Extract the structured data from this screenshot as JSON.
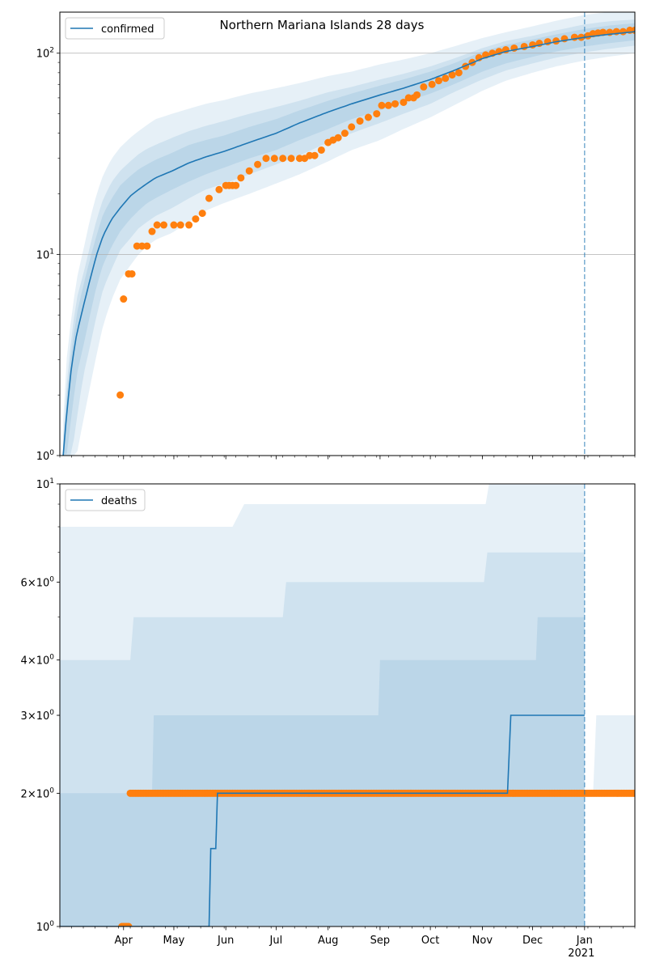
{
  "chart_data": [
    {
      "type": "line",
      "title": "Northern Mariana Islands 28 days",
      "yscale": "log",
      "ylim": [
        1,
        160
      ],
      "xlim": [
        "2020-02-23",
        "2021-01-31"
      ],
      "ytick_labels": [
        {
          "value": 1,
          "base": "10",
          "exp": "0"
        },
        {
          "value": 10,
          "base": "10",
          "exp": "1"
        },
        {
          "value": 100,
          "base": "10",
          "exp": "2"
        }
      ],
      "grid_y": [
        10,
        100
      ],
      "legend": {
        "position": "top-left",
        "entries": [
          "confirmed"
        ]
      },
      "forecast_start": "2021-01-01",
      "colors": {
        "line": "#1f77b4",
        "points": "#ff7f0e",
        "band": "#1f77b4",
        "vline": "#1f77b4"
      },
      "series": [
        {
          "name": "confirmed",
          "kind": "line",
          "x": [
            "2020-02-25",
            "2020-02-27",
            "2020-03-01",
            "2020-03-04",
            "2020-03-08",
            "2020-03-12",
            "2020-03-16",
            "2020-03-20",
            "2020-03-25",
            "2020-03-30",
            "2020-04-05",
            "2020-04-10",
            "2020-04-15",
            "2020-04-20",
            "2020-04-30",
            "2020-05-10",
            "2020-05-20",
            "2020-05-31",
            "2020-06-15",
            "2020-07-01",
            "2020-07-15",
            "2020-08-01",
            "2020-08-15",
            "2020-09-01",
            "2020-09-15",
            "2020-10-01",
            "2020-10-15",
            "2020-11-01",
            "2020-11-15",
            "2020-12-01",
            "2020-12-15",
            "2021-01-01",
            "2021-01-15",
            "2021-01-31"
          ],
          "values": [
            1,
            1.6,
            2.8,
            4,
            5.5,
            7.5,
            10,
            12.5,
            15,
            17,
            19.5,
            21,
            22.5,
            24,
            26,
            28.5,
            30.5,
            32.5,
            36,
            40,
            45,
            51,
            56,
            62,
            67,
            74,
            82,
            94,
            102,
            108,
            114,
            120,
            124,
            128
          ]
        },
        {
          "name": "",
          "kind": "points",
          "x": [
            "2020-03-30",
            "2020-04-01",
            "2020-04-04",
            "2020-04-06",
            "2020-04-09",
            "2020-04-12",
            "2020-04-15",
            "2020-04-18",
            "2020-04-21",
            "2020-04-25",
            "2020-05-01",
            "2020-05-05",
            "2020-05-10",
            "2020-05-14",
            "2020-05-18",
            "2020-05-22",
            "2020-05-28",
            "2020-06-01",
            "2020-06-03",
            "2020-06-05",
            "2020-06-07",
            "2020-06-10",
            "2020-06-15",
            "2020-06-20",
            "2020-06-25",
            "2020-06-30",
            "2020-07-05",
            "2020-07-10",
            "2020-07-15",
            "2020-07-18",
            "2020-07-21",
            "2020-07-24",
            "2020-07-28",
            "2020-08-01",
            "2020-08-04",
            "2020-08-07",
            "2020-08-11",
            "2020-08-15",
            "2020-08-20",
            "2020-08-25",
            "2020-08-30",
            "2020-09-02",
            "2020-09-06",
            "2020-09-10",
            "2020-09-15",
            "2020-09-18",
            "2020-09-21",
            "2020-09-23",
            "2020-09-27",
            "2020-10-02",
            "2020-10-06",
            "2020-10-10",
            "2020-10-14",
            "2020-10-18",
            "2020-10-22",
            "2020-10-26",
            "2020-10-30",
            "2020-11-03",
            "2020-11-07",
            "2020-11-11",
            "2020-11-15",
            "2020-11-20",
            "2020-11-26",
            "2020-12-01",
            "2020-12-05",
            "2020-12-10",
            "2020-12-15",
            "2020-12-20",
            "2020-12-26",
            "2020-12-30",
            "2021-01-03",
            "2021-01-06",
            "2021-01-09",
            "2021-01-12",
            "2021-01-16",
            "2021-01-20",
            "2021-01-24",
            "2021-01-28",
            "2021-01-31"
          ],
          "values": [
            2,
            6,
            8,
            8,
            11,
            11,
            11,
            13,
            14,
            14,
            14,
            14,
            14,
            15,
            16,
            19,
            21,
            22,
            22,
            22,
            22,
            24,
            26,
            28,
            30,
            30,
            30,
            30,
            30,
            30,
            31,
            31,
            33,
            36,
            37,
            38,
            40,
            43,
            46,
            48,
            50,
            55,
            55,
            56,
            57,
            60,
            60,
            62,
            68,
            70,
            73,
            75,
            78,
            80,
            86,
            90,
            95,
            98,
            100,
            102,
            104,
            106,
            108,
            110,
            112,
            114,
            115,
            118,
            120,
            120,
            122,
            125,
            126,
            127,
            127,
            128,
            128,
            130,
            130
          ]
        }
      ],
      "bands": [
        {
          "lower": [
            1,
            1,
            1,
            1,
            1.5,
            2.2,
            3.2,
            4.5,
            6,
            7.5,
            8.8,
            10,
            11,
            11.8,
            12.8,
            14.5,
            16.5,
            18,
            20,
            22.5,
            25,
            29,
            33,
            37,
            42,
            48,
            55,
            65,
            73,
            80,
            86,
            92,
            96,
            100
          ],
          "upper": [
            1.5,
            3,
            5,
            7.5,
            10.5,
            15,
            20,
            25,
            30,
            34,
            38,
            41,
            44,
            47,
            50,
            53,
            56,
            58.5,
            63,
            67,
            71,
            77,
            81,
            88,
            93,
            100,
            108,
            119,
            127,
            136,
            145,
            155,
            160,
            160
          ]
        },
        {
          "lower": [
            1,
            1,
            1,
            1.5,
            2.5,
            3.5,
            5,
            6.8,
            8.5,
            10.5,
            12,
            13.5,
            14.5,
            15.5,
            17,
            19,
            21,
            22.5,
            25,
            28,
            31,
            36,
            40,
            45,
            50,
            56,
            64,
            74,
            82,
            89,
            95,
            101,
            105,
            109
          ],
          "upper": [
            1.2,
            2.2,
            4,
            6,
            8,
            11,
            15,
            19,
            23,
            26,
            29,
            31.5,
            33.5,
            35,
            38,
            41,
            43.5,
            46,
            50,
            54,
            58,
            64,
            68,
            74,
            79,
            86,
            94,
            106,
            115,
            122,
            130,
            139,
            144,
            147
          ]
        },
        {
          "lower": [
            1,
            1,
            1.6,
            2.5,
            3.5,
            5,
            7,
            9,
            11,
            13,
            15,
            16.5,
            18,
            19,
            21,
            23,
            25,
            27,
            30,
            33,
            37,
            42,
            47,
            52,
            57,
            63,
            70,
            81,
            89,
            96,
            102,
            108,
            112,
            116
          ],
          "upper": [
            1.1,
            1.9,
            3.4,
            5,
            7,
            9.5,
            12.5,
            16,
            19,
            22,
            24.5,
            26.5,
            28,
            29.5,
            32,
            35,
            37,
            39,
            43,
            47,
            52,
            58,
            63,
            69,
            74,
            81,
            89,
            102,
            110,
            117,
            124,
            132,
            137,
            141
          ]
        }
      ]
    },
    {
      "type": "line",
      "yscale": "log",
      "ylim": [
        1,
        10
      ],
      "xlim": [
        "2020-02-23",
        "2021-01-31"
      ],
      "ytick_labels": [
        {
          "value": 1,
          "base": "10",
          "exp": "0"
        },
        {
          "value": 2,
          "base": "2×10",
          "exp": "0"
        },
        {
          "value": 3,
          "base": "3×10",
          "exp": "0"
        },
        {
          "value": 4,
          "base": "4×10",
          "exp": "0"
        },
        {
          "value": 6,
          "base": "6×10",
          "exp": "0"
        },
        {
          "value": 10,
          "base": "10",
          "exp": "1"
        }
      ],
      "x_ticks": [
        {
          "date": "2020-04-01",
          "label": "Apr"
        },
        {
          "date": "2020-05-01",
          "label": "May"
        },
        {
          "date": "2020-06-01",
          "label": "Jun"
        },
        {
          "date": "2020-07-01",
          "label": "Jul"
        },
        {
          "date": "2020-08-01",
          "label": "Aug"
        },
        {
          "date": "2020-09-01",
          "label": "Sep"
        },
        {
          "date": "2020-10-01",
          "label": "Oct"
        },
        {
          "date": "2020-11-01",
          "label": "Nov"
        },
        {
          "date": "2020-12-01",
          "label": "Dec"
        },
        {
          "date": "2021-01-01",
          "label": "Jan",
          "sublabel": "2021"
        }
      ],
      "legend": {
        "position": "top-left",
        "entries": [
          "deaths"
        ]
      },
      "forecast_start": "2021-01-01",
      "colors": {
        "line": "#1f77b4",
        "points": "#ff7f0e",
        "band": "#1f77b4",
        "vline": "#1f77b4"
      },
      "series": [
        {
          "name": "deaths",
          "kind": "step",
          "x": [
            "2020-02-23",
            "2020-05-22",
            "2020-05-23",
            "2020-05-26",
            "2020-05-27",
            "2020-11-16",
            "2020-11-18",
            "2021-01-01"
          ],
          "values": [
            1,
            1,
            1.5,
            1.5,
            2,
            2,
            3,
            3
          ]
        },
        {
          "name": "",
          "kind": "points",
          "x_range": [
            "2020-04-06",
            "2021-01-31"
          ],
          "value": 2,
          "x_extra": [
            "2020-03-31",
            "2020-04-01",
            "2020-04-02",
            "2020-04-03",
            "2020-04-04",
            "2020-04-05"
          ],
          "values_extra": [
            1,
            1,
            1,
            1,
            1,
            2
          ]
        }
      ],
      "bands": [
        {
          "steps": [
            [
              "2020-02-23",
              1
            ],
            [
              "2021-01-01",
              1
            ]
          ],
          "upper_steps": [
            [
              "2020-02-23",
              8
            ],
            [
              "2020-06-05",
              8
            ],
            [
              "2020-06-12",
              9
            ],
            [
              "2020-11-03",
              9
            ],
            [
              "2020-11-05",
              10
            ],
            [
              "2021-01-01",
              10
            ]
          ]
        },
        {
          "steps": [
            [
              "2020-02-23",
              1
            ],
            [
              "2021-01-01",
              1
            ]
          ],
          "upper_steps": [
            [
              "2020-02-23",
              4
            ],
            [
              "2020-04-05",
              4
            ],
            [
              "2020-04-07",
              5
            ],
            [
              "2020-07-05",
              5
            ],
            [
              "2020-07-07",
              6
            ],
            [
              "2020-11-02",
              6
            ],
            [
              "2020-11-04",
              7
            ],
            [
              "2021-01-01",
              7
            ]
          ]
        },
        {
          "steps": [
            [
              "2020-02-23",
              1
            ],
            [
              "2021-01-01",
              1
            ]
          ],
          "upper_steps": [
            [
              "2020-02-23",
              2
            ],
            [
              "2020-04-18",
              2
            ],
            [
              "2020-04-19",
              3
            ],
            [
              "2020-08-31",
              3
            ],
            [
              "2020-09-01",
              4
            ],
            [
              "2020-12-03",
              4
            ],
            [
              "2020-12-04",
              5
            ],
            [
              "2021-01-01",
              5
            ]
          ]
        }
      ],
      "post_band": {
        "x": [
          "2021-01-08",
          "2021-01-31"
        ],
        "lower": 2,
        "upper": 3
      }
    }
  ]
}
